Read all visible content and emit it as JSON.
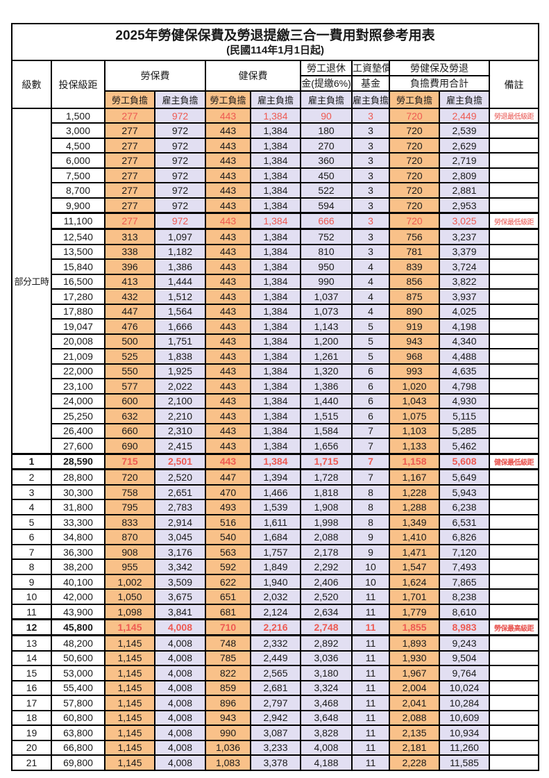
{
  "title": "2025年勞健保保費及勞退提繳三合一費用對照參考用表",
  "subtitle": "(民國114年1月1日起)",
  "colors": {
    "employee_column_bg": "#f9c189",
    "employer_column_bg": "#e2dff2",
    "highlight_text": "#ee5a52"
  },
  "header": {
    "level": "級數",
    "salary_bracket": "投保級距",
    "labor_insurance": "勞保費",
    "health_insurance": "健保費",
    "pension_line1": "勞工退休",
    "pension_line2": "金(提繳6%)",
    "wage_fund_line1": "工資墊償",
    "wage_fund_line2": "基金",
    "total_line1": "勞健保及勞退",
    "total_line2": "負擔費用合計",
    "note": "備註",
    "employee_share": "勞工負擔",
    "employer_share": "雇主負擔"
  },
  "part_time_label": "部分工時",
  "rows": [
    {
      "level": "",
      "salary": "1,500",
      "fees": [
        "277",
        "972",
        "443",
        "1,384",
        "90",
        "3",
        "720",
        "2,449"
      ],
      "note": "勞退最低級距",
      "red": true,
      "bold": false,
      "thick": false
    },
    {
      "level": "",
      "salary": "3,000",
      "fees": [
        "277",
        "972",
        "443",
        "1,384",
        "180",
        "3",
        "720",
        "2,539"
      ],
      "note": "",
      "red": false,
      "bold": false,
      "thick": false
    },
    {
      "level": "",
      "salary": "4,500",
      "fees": [
        "277",
        "972",
        "443",
        "1,384",
        "270",
        "3",
        "720",
        "2,629"
      ],
      "note": "",
      "red": false,
      "bold": false,
      "thick": false
    },
    {
      "level": "",
      "salary": "6,000",
      "fees": [
        "277",
        "972",
        "443",
        "1,384",
        "360",
        "3",
        "720",
        "2,719"
      ],
      "note": "",
      "red": false,
      "bold": false,
      "thick": false
    },
    {
      "level": "",
      "salary": "7,500",
      "fees": [
        "277",
        "972",
        "443",
        "1,384",
        "450",
        "3",
        "720",
        "2,809"
      ],
      "note": "",
      "red": false,
      "bold": false,
      "thick": false
    },
    {
      "level": "",
      "salary": "8,700",
      "fees": [
        "277",
        "972",
        "443",
        "1,384",
        "522",
        "3",
        "720",
        "2,881"
      ],
      "note": "",
      "red": false,
      "bold": false,
      "thick": false
    },
    {
      "level": "",
      "salary": "9,900",
      "fees": [
        "277",
        "972",
        "443",
        "1,384",
        "594",
        "3",
        "720",
        "2,953"
      ],
      "note": "",
      "red": false,
      "bold": false,
      "thick": false
    },
    {
      "level": "",
      "salary": "11,100",
      "fees": [
        "277",
        "972",
        "443",
        "1,384",
        "666",
        "3",
        "720",
        "3,025"
      ],
      "note": "勞保最低級距",
      "red": true,
      "bold": false,
      "thick": true
    },
    {
      "level": "",
      "salary": "12,540",
      "fees": [
        "313",
        "1,097",
        "443",
        "1,384",
        "752",
        "3",
        "756",
        "3,237"
      ],
      "note": "",
      "red": false,
      "bold": false,
      "thick": false
    },
    {
      "level": "",
      "salary": "13,500",
      "fees": [
        "338",
        "1,182",
        "443",
        "1,384",
        "810",
        "3",
        "781",
        "3,379"
      ],
      "note": "",
      "red": false,
      "bold": false,
      "thick": false
    },
    {
      "level": "",
      "salary": "15,840",
      "fees": [
        "396",
        "1,386",
        "443",
        "1,384",
        "950",
        "4",
        "839",
        "3,724"
      ],
      "note": "",
      "red": false,
      "bold": false,
      "thick": false
    },
    {
      "level": "",
      "salary": "16,500",
      "fees": [
        "413",
        "1,444",
        "443",
        "1,384",
        "990",
        "4",
        "856",
        "3,822"
      ],
      "note": "",
      "red": false,
      "bold": false,
      "thick": false
    },
    {
      "level": "",
      "salary": "17,280",
      "fees": [
        "432",
        "1,512",
        "443",
        "1,384",
        "1,037",
        "4",
        "875",
        "3,937"
      ],
      "note": "",
      "red": false,
      "bold": false,
      "thick": false
    },
    {
      "level": "",
      "salary": "17,880",
      "fees": [
        "447",
        "1,564",
        "443",
        "1,384",
        "1,073",
        "4",
        "890",
        "4,025"
      ],
      "note": "",
      "red": false,
      "bold": false,
      "thick": false
    },
    {
      "level": "",
      "salary": "19,047",
      "fees": [
        "476",
        "1,666",
        "443",
        "1,384",
        "1,143",
        "5",
        "919",
        "4,198"
      ],
      "note": "",
      "red": false,
      "bold": false,
      "thick": false
    },
    {
      "level": "",
      "salary": "20,008",
      "fees": [
        "500",
        "1,751",
        "443",
        "1,384",
        "1,200",
        "5",
        "943",
        "4,340"
      ],
      "note": "",
      "red": false,
      "bold": false,
      "thick": false
    },
    {
      "level": "",
      "salary": "21,009",
      "fees": [
        "525",
        "1,838",
        "443",
        "1,384",
        "1,261",
        "5",
        "968",
        "4,488"
      ],
      "note": "",
      "red": false,
      "bold": false,
      "thick": false
    },
    {
      "level": "",
      "salary": "22,000",
      "fees": [
        "550",
        "1,925",
        "443",
        "1,384",
        "1,320",
        "6",
        "993",
        "4,635"
      ],
      "note": "",
      "red": false,
      "bold": false,
      "thick": false
    },
    {
      "level": "",
      "salary": "23,100",
      "fees": [
        "577",
        "2,022",
        "443",
        "1,384",
        "1,386",
        "6",
        "1,020",
        "4,798"
      ],
      "note": "",
      "red": false,
      "bold": false,
      "thick": false
    },
    {
      "level": "",
      "salary": "24,000",
      "fees": [
        "600",
        "2,100",
        "443",
        "1,384",
        "1,440",
        "6",
        "1,043",
        "4,930"
      ],
      "note": "",
      "red": false,
      "bold": false,
      "thick": false
    },
    {
      "level": "",
      "salary": "25,250",
      "fees": [
        "632",
        "2,210",
        "443",
        "1,384",
        "1,515",
        "6",
        "1,075",
        "5,115"
      ],
      "note": "",
      "red": false,
      "bold": false,
      "thick": false
    },
    {
      "level": "",
      "salary": "26,400",
      "fees": [
        "660",
        "2,310",
        "443",
        "1,384",
        "1,584",
        "7",
        "1,103",
        "5,285"
      ],
      "note": "",
      "red": false,
      "bold": false,
      "thick": false
    },
    {
      "level": "",
      "salary": "27,600",
      "fees": [
        "690",
        "2,415",
        "443",
        "1,384",
        "1,656",
        "7",
        "1,133",
        "5,462"
      ],
      "note": "",
      "red": false,
      "bold": false,
      "thick": false
    },
    {
      "level": "1",
      "salary": "28,590",
      "fees": [
        "715",
        "2,501",
        "443",
        "1,384",
        "1,715",
        "7",
        "1,158",
        "5,608"
      ],
      "note": "健保最低級距",
      "red": true,
      "bold": true,
      "thick": true
    },
    {
      "level": "2",
      "salary": "28,800",
      "fees": [
        "720",
        "2,520",
        "447",
        "1,394",
        "1,728",
        "7",
        "1,167",
        "5,649"
      ],
      "note": "",
      "red": false,
      "bold": false,
      "thick": false
    },
    {
      "level": "3",
      "salary": "30,300",
      "fees": [
        "758",
        "2,651",
        "470",
        "1,466",
        "1,818",
        "8",
        "1,228",
        "5,943"
      ],
      "note": "",
      "red": false,
      "bold": false,
      "thick": false
    },
    {
      "level": "4",
      "salary": "31,800",
      "fees": [
        "795",
        "2,783",
        "493",
        "1,539",
        "1,908",
        "8",
        "1,288",
        "6,238"
      ],
      "note": "",
      "red": false,
      "bold": false,
      "thick": false
    },
    {
      "level": "5",
      "salary": "33,300",
      "fees": [
        "833",
        "2,914",
        "516",
        "1,611",
        "1,998",
        "8",
        "1,349",
        "6,531"
      ],
      "note": "",
      "red": false,
      "bold": false,
      "thick": false
    },
    {
      "level": "6",
      "salary": "34,800",
      "fees": [
        "870",
        "3,045",
        "540",
        "1,684",
        "2,088",
        "9",
        "1,410",
        "6,826"
      ],
      "note": "",
      "red": false,
      "bold": false,
      "thick": false
    },
    {
      "level": "7",
      "salary": "36,300",
      "fees": [
        "908",
        "3,176",
        "563",
        "1,757",
        "2,178",
        "9",
        "1,471",
        "7,120"
      ],
      "note": "",
      "red": false,
      "bold": false,
      "thick": false
    },
    {
      "level": "8",
      "salary": "38,200",
      "fees": [
        "955",
        "3,342",
        "592",
        "1,849",
        "2,292",
        "10",
        "1,547",
        "7,493"
      ],
      "note": "",
      "red": false,
      "bold": false,
      "thick": false
    },
    {
      "level": "9",
      "salary": "40,100",
      "fees": [
        "1,002",
        "3,509",
        "622",
        "1,940",
        "2,406",
        "10",
        "1,624",
        "7,865"
      ],
      "note": "",
      "red": false,
      "bold": false,
      "thick": false
    },
    {
      "level": "10",
      "salary": "42,000",
      "fees": [
        "1,050",
        "3,675",
        "651",
        "2,032",
        "2,520",
        "11",
        "1,701",
        "8,238"
      ],
      "note": "",
      "red": false,
      "bold": false,
      "thick": false
    },
    {
      "level": "11",
      "salary": "43,900",
      "fees": [
        "1,098",
        "3,841",
        "681",
        "2,124",
        "2,634",
        "11",
        "1,779",
        "8,610"
      ],
      "note": "",
      "red": false,
      "bold": false,
      "thick": false
    },
    {
      "level": "12",
      "salary": "45,800",
      "fees": [
        "1,145",
        "4,008",
        "710",
        "2,216",
        "2,748",
        "11",
        "1,855",
        "8,983"
      ],
      "note": "勞保最高級距",
      "red": true,
      "bold": true,
      "thick": true
    },
    {
      "level": "13",
      "salary": "48,200",
      "fees": [
        "1,145",
        "4,008",
        "748",
        "2,332",
        "2,892",
        "11",
        "1,893",
        "9,243"
      ],
      "note": "",
      "red": false,
      "bold": false,
      "thick": false
    },
    {
      "level": "14",
      "salary": "50,600",
      "fees": [
        "1,145",
        "4,008",
        "785",
        "2,449",
        "3,036",
        "11",
        "1,930",
        "9,504"
      ],
      "note": "",
      "red": false,
      "bold": false,
      "thick": false
    },
    {
      "level": "15",
      "salary": "53,000",
      "fees": [
        "1,145",
        "4,008",
        "822",
        "2,565",
        "3,180",
        "11",
        "1,967",
        "9,764"
      ],
      "note": "",
      "red": false,
      "bold": false,
      "thick": false
    },
    {
      "level": "16",
      "salary": "55,400",
      "fees": [
        "1,145",
        "4,008",
        "859",
        "2,681",
        "3,324",
        "11",
        "2,004",
        "10,024"
      ],
      "note": "",
      "red": false,
      "bold": false,
      "thick": false
    },
    {
      "level": "17",
      "salary": "57,800",
      "fees": [
        "1,145",
        "4,008",
        "896",
        "2,797",
        "3,468",
        "11",
        "2,041",
        "10,284"
      ],
      "note": "",
      "red": false,
      "bold": false,
      "thick": false
    },
    {
      "level": "18",
      "salary": "60,800",
      "fees": [
        "1,145",
        "4,008",
        "943",
        "2,942",
        "3,648",
        "11",
        "2,088",
        "10,609"
      ],
      "note": "",
      "red": false,
      "bold": false,
      "thick": false
    },
    {
      "level": "19",
      "salary": "63,800",
      "fees": [
        "1,145",
        "4,008",
        "990",
        "3,087",
        "3,828",
        "11",
        "2,135",
        "10,934"
      ],
      "note": "",
      "red": false,
      "bold": false,
      "thick": false
    },
    {
      "level": "20",
      "salary": "66,800",
      "fees": [
        "1,145",
        "4,008",
        "1,036",
        "3,233",
        "4,008",
        "11",
        "2,181",
        "11,260"
      ],
      "note": "",
      "red": false,
      "bold": false,
      "thick": false
    },
    {
      "level": "21",
      "salary": "69,800",
      "fees": [
        "1,145",
        "4,008",
        "1,083",
        "3,378",
        "4,188",
        "11",
        "2,228",
        "11,585"
      ],
      "note": "",
      "red": false,
      "bold": false,
      "thick": false
    }
  ]
}
